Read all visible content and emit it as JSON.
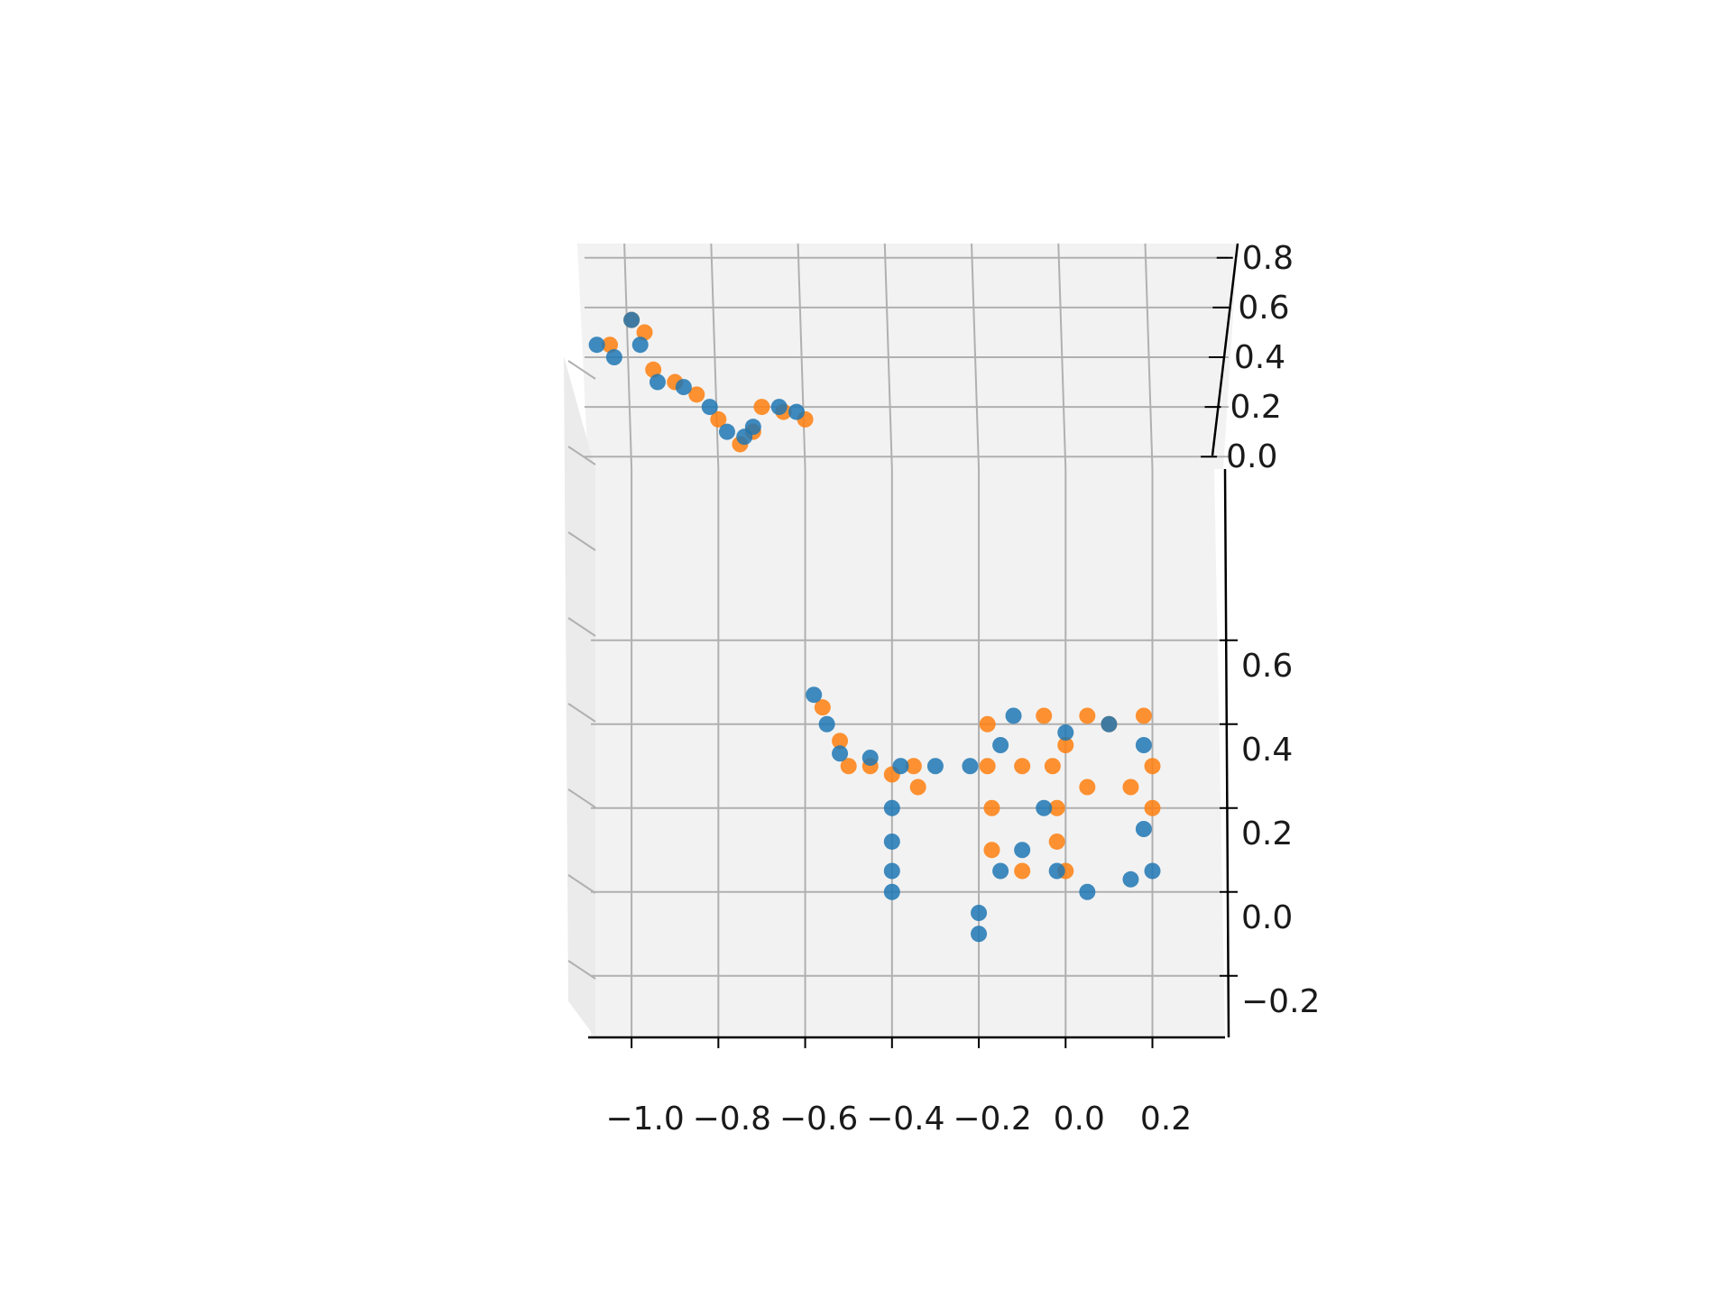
{
  "chart_data": {
    "type": "scatter",
    "projection": "3d",
    "title": "",
    "xlabel": "",
    "ylabel": "",
    "zlabel": "",
    "grid": true,
    "legend": "none",
    "xlim": [
      -1.1,
      0.28
    ],
    "ylim": [
      -0.05,
      0.85
    ],
    "zlim": [
      -0.25,
      0.75
    ],
    "x_ticks": [
      -1.0,
      -0.8,
      -0.6,
      -0.4,
      -0.2,
      0.0,
      0.2
    ],
    "x_tick_labels": [
      "−1.0",
      "−0.8",
      "−0.6",
      "−0.4",
      "−0.2",
      "0.0",
      "0.2"
    ],
    "y_ticks": [
      0.0,
      0.2,
      0.4,
      0.6,
      0.8
    ],
    "y_tick_labels": [
      "0.0",
      "0.2",
      "0.4",
      "0.6",
      "0.8"
    ],
    "z_ticks": [
      -0.2,
      0.0,
      0.2,
      0.4,
      0.6
    ],
    "z_tick_labels": [
      "−0.2",
      "0.0",
      "0.2",
      "0.4",
      "0.6"
    ],
    "colors": {
      "series_a": "#ff7f0e",
      "series_b": "#1f77b4",
      "pane": "#f2f2f2",
      "grid": "#b0b0b0",
      "axis": "#000000"
    },
    "series": [
      {
        "color": "#ff7f0e",
        "points": [
          [
            -1.05,
            0.45,
            0.7
          ],
          [
            -1.0,
            0.55,
            0.72
          ],
          [
            -0.97,
            0.5,
            0.7
          ],
          [
            -0.95,
            0.35,
            0.7
          ],
          [
            -0.9,
            0.3,
            0.7
          ],
          [
            -0.85,
            0.25,
            0.7
          ],
          [
            -0.8,
            0.15,
            0.7
          ],
          [
            -0.75,
            0.05,
            0.7
          ],
          [
            -0.72,
            0.1,
            0.7
          ],
          [
            -0.7,
            0.2,
            0.55
          ],
          [
            -0.65,
            0.18,
            0.52
          ],
          [
            -0.6,
            0.15,
            0.5
          ],
          [
            -0.56,
            0.1,
            0.44
          ],
          [
            -0.52,
            0.08,
            0.36
          ],
          [
            -0.5,
            0.06,
            0.3
          ],
          [
            -0.45,
            0.05,
            0.3
          ],
          [
            -0.4,
            0.05,
            0.28
          ],
          [
            -0.35,
            0.05,
            0.3
          ],
          [
            -0.34,
            0.05,
            0.25
          ],
          [
            -0.18,
            0.05,
            0.4
          ],
          [
            -0.18,
            0.05,
            0.3
          ],
          [
            -0.17,
            0.05,
            0.2
          ],
          [
            -0.17,
            0.05,
            0.1
          ],
          [
            -0.1,
            0.05,
            0.05
          ],
          [
            -0.05,
            0.05,
            0.42
          ],
          [
            -0.03,
            0.05,
            0.3
          ],
          [
            -0.02,
            0.05,
            0.2
          ],
          [
            -0.02,
            0.05,
            0.12
          ],
          [
            0.0,
            0.05,
            0.05
          ],
          [
            0.05,
            0.05,
            0.42
          ],
          [
            0.1,
            0.05,
            0.4
          ],
          [
            0.18,
            0.05,
            0.42
          ],
          [
            0.2,
            0.05,
            0.3
          ],
          [
            0.2,
            0.05,
            0.2
          ],
          [
            0.15,
            0.05,
            0.25
          ],
          [
            0.05,
            0.05,
            0.25
          ],
          [
            -0.1,
            0.05,
            0.3
          ],
          [
            0.0,
            0.05,
            0.35
          ]
        ]
      },
      {
        "color": "#1f77b4",
        "points": [
          [
            -1.08,
            0.45,
            0.7
          ],
          [
            -1.04,
            0.4,
            0.7
          ],
          [
            -1.0,
            0.55,
            0.72
          ],
          [
            -0.98,
            0.45,
            0.7
          ],
          [
            -0.94,
            0.3,
            0.7
          ],
          [
            -0.88,
            0.28,
            0.7
          ],
          [
            -0.82,
            0.2,
            0.7
          ],
          [
            -0.78,
            0.1,
            0.7
          ],
          [
            -0.74,
            0.08,
            0.7
          ],
          [
            -0.72,
            0.12,
            0.55
          ],
          [
            -0.66,
            0.2,
            0.53
          ],
          [
            -0.62,
            0.18,
            0.51
          ],
          [
            -0.58,
            0.12,
            0.47
          ],
          [
            -0.55,
            0.1,
            0.4
          ],
          [
            -0.52,
            0.06,
            0.33
          ],
          [
            -0.45,
            0.05,
            0.32
          ],
          [
            -0.38,
            0.05,
            0.3
          ],
          [
            -0.3,
            0.05,
            0.3
          ],
          [
            -0.22,
            0.05,
            0.3
          ],
          [
            -0.4,
            0.05,
            0.2
          ],
          [
            -0.4,
            0.05,
            0.12
          ],
          [
            -0.4,
            0.05,
            0.05
          ],
          [
            -0.4,
            0.05,
            0.0
          ],
          [
            -0.2,
            0.05,
            -0.05
          ],
          [
            -0.2,
            0.05,
            -0.1
          ],
          [
            -0.15,
            0.05,
            0.05
          ],
          [
            -0.1,
            0.05,
            0.1
          ],
          [
            -0.05,
            0.05,
            0.2
          ],
          [
            -0.02,
            0.05,
            0.05
          ],
          [
            0.05,
            0.05,
            0.0
          ],
          [
            0.15,
            0.05,
            0.03
          ],
          [
            0.2,
            0.05,
            0.05
          ],
          [
            0.18,
            0.05,
            0.15
          ],
          [
            -0.12,
            0.05,
            0.42
          ],
          [
            0.0,
            0.05,
            0.38
          ],
          [
            0.1,
            0.05,
            0.4
          ],
          [
            0.18,
            0.05,
            0.35
          ],
          [
            -0.15,
            0.05,
            0.35
          ]
        ]
      }
    ]
  }
}
